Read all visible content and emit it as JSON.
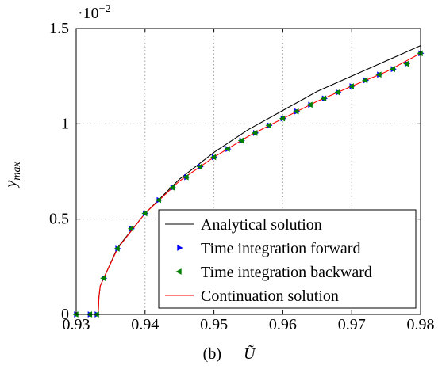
{
  "chart_data": {
    "type": "line",
    "caption_prefix": "(b)",
    "xlabel": "Ũ",
    "ylabel": "y",
    "ylabel_sub": "max",
    "y_multiplier_base": "·10",
    "y_multiplier_exp": "−2",
    "xlim": [
      0.93,
      0.98
    ],
    "ylim": [
      0,
      1.5
    ],
    "xticks": [
      0.93,
      0.94,
      0.95,
      0.96,
      0.97,
      0.98
    ],
    "xtick_labels": [
      "0.93",
      "0.94",
      "0.95",
      "0.96",
      "0.97",
      "0.98"
    ],
    "yticks": [
      0,
      0.5,
      1,
      1.5
    ],
    "ytick_labels": [
      "0",
      "0.5",
      "1",
      "1.5"
    ],
    "grid": true,
    "legend_position": "bottom-right",
    "bifurcation_x": 0.9332,
    "series": [
      {
        "name": "Analytical solution",
        "style": "line",
        "color": "#000000",
        "x": [
          0.93,
          0.9332,
          0.9333,
          0.9335,
          0.934,
          0.936,
          0.94,
          0.945,
          0.95,
          0.955,
          0.96,
          0.965,
          0.97,
          0.975,
          0.98
        ],
        "y": [
          0,
          0,
          0.09,
          0.15,
          0.19,
          0.35,
          0.53,
          0.71,
          0.85,
          0.97,
          1.07,
          1.17,
          1.25,
          1.33,
          1.41
        ]
      },
      {
        "name": "Time integration forward",
        "style": "marker",
        "marker": "triangle-right",
        "color": "#0000ff",
        "x": [
          0.93,
          0.932,
          0.933,
          0.934,
          0.936,
          0.938,
          0.94,
          0.942,
          0.944,
          0.946,
          0.948,
          0.95,
          0.952,
          0.954,
          0.956,
          0.958,
          0.96,
          0.962,
          0.964,
          0.966,
          0.968,
          0.97,
          0.972,
          0.974,
          0.976,
          0.978,
          0.98
        ],
        "y": [
          0,
          0,
          0,
          0.19,
          0.345,
          0.45,
          0.53,
          0.6,
          0.665,
          0.72,
          0.775,
          0.825,
          0.868,
          0.912,
          0.952,
          0.992,
          1.028,
          1.065,
          1.1,
          1.133,
          1.165,
          1.197,
          1.228,
          1.258,
          1.287,
          1.315,
          1.37
        ]
      },
      {
        "name": "Time integration backward",
        "style": "marker",
        "marker": "triangle-left",
        "color": "#008000",
        "x": [
          0.93,
          0.932,
          0.933,
          0.934,
          0.936,
          0.938,
          0.94,
          0.942,
          0.944,
          0.946,
          0.948,
          0.95,
          0.952,
          0.954,
          0.956,
          0.958,
          0.96,
          0.962,
          0.964,
          0.966,
          0.968,
          0.97,
          0.972,
          0.974,
          0.976,
          0.978,
          0.98
        ],
        "y": [
          0,
          0,
          0,
          0.19,
          0.345,
          0.45,
          0.53,
          0.6,
          0.665,
          0.72,
          0.775,
          0.825,
          0.868,
          0.912,
          0.952,
          0.992,
          1.028,
          1.065,
          1.1,
          1.133,
          1.165,
          1.197,
          1.228,
          1.258,
          1.287,
          1.315,
          1.37
        ]
      },
      {
        "name": "Continuation solution",
        "style": "line",
        "color": "#ff0000",
        "x": [
          0.93,
          0.9332,
          0.9333,
          0.9335,
          0.934,
          0.936,
          0.94,
          0.945,
          0.95,
          0.955,
          0.96,
          0.965,
          0.97,
          0.975,
          0.98
        ],
        "y": [
          0,
          0,
          0.09,
          0.15,
          0.19,
          0.345,
          0.53,
          0.7,
          0.825,
          0.935,
          1.028,
          1.118,
          1.197,
          1.273,
          1.37
        ]
      }
    ]
  }
}
